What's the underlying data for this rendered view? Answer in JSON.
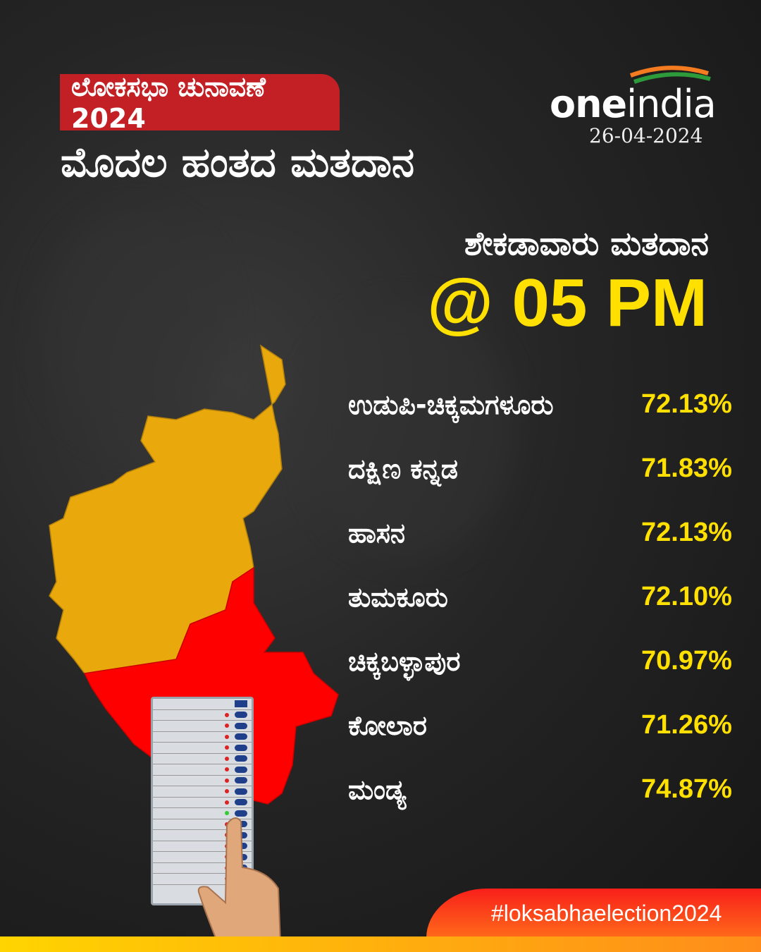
{
  "header": {
    "tag": "ಲೋಕಸಭಾ ಚುನಾವಣೆ 2024",
    "title": "ಮೊದಲ ಹಂತದ ಮತದಾನ"
  },
  "brand": {
    "name_bold": "one",
    "name_light": "india",
    "date": "26-04-2024"
  },
  "turnout": {
    "label": "ಶೇಕಡಾವಾರು ಮತದಾನ",
    "time": "@ 05 PM"
  },
  "constituencies": [
    {
      "name": "ಉಡುಪಿ-ಚಿಕ್ಕಮಗಳೂರು",
      "value": "72.13%"
    },
    {
      "name": "ದಕ್ಷಿಣ ಕನ್ನಡ",
      "value": "71.83%"
    },
    {
      "name": "ಹಾಸನ",
      "value": "72.13%"
    },
    {
      "name": "ತುಮಕೂರು",
      "value": "72.10%"
    },
    {
      "name": "ಚಿಕ್ಕಬಳ್ಳಾಪುರ",
      "value": "70.97%"
    },
    {
      "name": "ಕೋಲಾರ",
      "value": "71.26%"
    },
    {
      "name": "ಮಂಡ್ಯ",
      "value": "74.87%"
    }
  ],
  "footer": {
    "hashtag": "#loksabhaelection2024"
  },
  "colors": {
    "tag": "#c32025",
    "highlight": "#ffe000",
    "map_north": "#e9a80b",
    "map_south": "#ff0000",
    "footer": "#ff4a1a"
  }
}
